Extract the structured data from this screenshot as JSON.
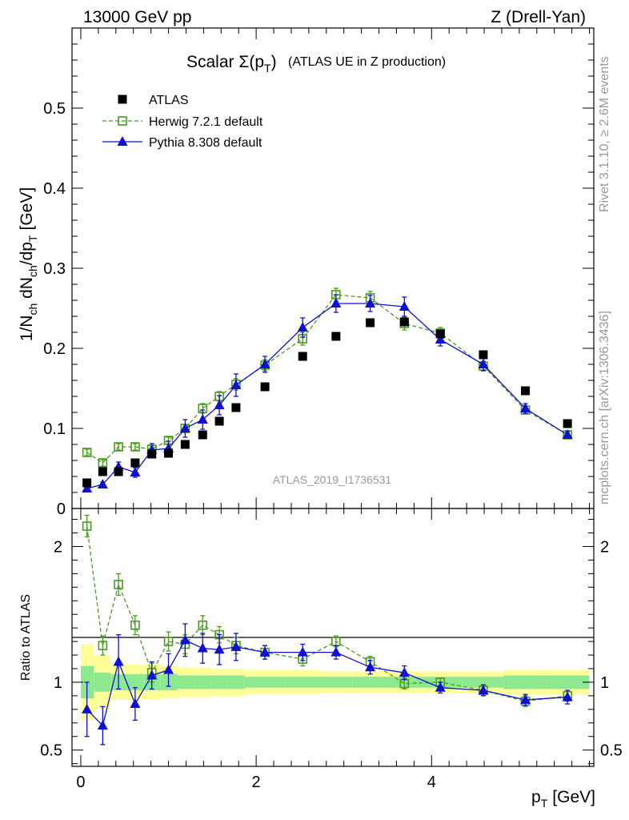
{
  "header": {
    "left": "13000 GeV pp",
    "right": "Z (Drell-Yan)"
  },
  "chart_data": {
    "type": "line",
    "title_main": "Scalar Σ(p",
    "title_sub": "T",
    "title_tail": ")",
    "title_note": "(ATLAS UE in Z production)",
    "analysis_id": "ATLAS_2019_I1736531",
    "xlabel": "p",
    "xlabel_sub": "T",
    "xlabel_unit": "[GeV]",
    "ylabel": "1/N",
    "ylabel_parts": {
      "a": "1/N",
      "a_sub": "ch",
      "b": " dN",
      "b_sub": "ch",
      "c": "/dp",
      "c_sub": "T",
      "unit": "[GeV]"
    },
    "ratio_ylabel": "Ratio to ATLAS",
    "xlim": [
      -0.1,
      5.85
    ],
    "ylim": [
      0,
      0.6
    ],
    "ratio_ylim": [
      0.38,
      2.28
    ],
    "x_ticks": [
      0,
      2,
      4
    ],
    "x_tick_labels": [
      "0",
      "2",
      "4"
    ],
    "y_ticks": [
      0,
      0.1,
      0.2,
      0.3,
      0.4,
      0.5
    ],
    "y_tick_labels": [
      "0",
      "0.1",
      "0.2",
      "0.3",
      "0.4",
      "0.5"
    ],
    "ratio_ticks": [
      0.5,
      1,
      2
    ],
    "ratio_tick_labels": [
      "0.5",
      "1",
      "2"
    ],
    "legend_placement": "top-left",
    "side_text_top": "Rivet 3.1.10, ≥ 2.6M events",
    "side_text_bottom": "mcplots.cern.ch [arXiv:1306.3436]",
    "x": [
      0.07,
      0.25,
      0.43,
      0.62,
      0.81,
      1.0,
      1.19,
      1.39,
      1.58,
      1.77,
      2.1,
      2.53,
      2.91,
      3.3,
      3.69,
      4.1,
      4.59,
      5.07,
      5.55
    ],
    "series": [
      {
        "name": "ATLAS",
        "color": "#000000",
        "values": [
          0.032,
          0.046,
          0.046,
          0.057,
          0.068,
          0.069,
          0.08,
          0.092,
          0.109,
          0.126,
          0.152,
          0.19,
          0.215,
          0.232,
          0.233,
          0.218,
          0.192,
          0.147,
          0.106
        ]
      },
      {
        "name": "Herwig 7.2.1 default",
        "color": "#4a9b1e",
        "values": [
          0.07,
          0.057,
          0.077,
          0.077,
          0.074,
          0.085,
          0.1,
          0.125,
          0.14,
          0.155,
          0.179,
          0.212,
          0.267,
          0.263,
          0.231,
          0.219,
          0.178,
          0.123,
          0.092
        ],
        "errors": [
          0.004,
          0.004,
          0.004,
          0.004,
          0.004,
          0.004,
          0.005,
          0.006,
          0.006,
          0.007,
          0.007,
          0.008,
          0.008,
          0.008,
          0.008,
          0.007,
          0.006,
          0.005,
          0.004
        ],
        "ratio": [
          2.15,
          1.27,
          1.72,
          1.42,
          1.07,
          1.3,
          1.28,
          1.42,
          1.35,
          1.27,
          1.22,
          1.17,
          1.3,
          1.15,
          0.99,
          1.0,
          0.94,
          0.86,
          0.9
        ],
        "ratio_errors": [
          0.08,
          0.07,
          0.08,
          0.07,
          0.07,
          0.07,
          0.07,
          0.07,
          0.06,
          0.06,
          0.05,
          0.05,
          0.04,
          0.04,
          0.04,
          0.03,
          0.04,
          0.04,
          0.04
        ]
      },
      {
        "name": "Pythia 8.308 default",
        "color": "#1010d0",
        "values": [
          0.025,
          0.03,
          0.052,
          0.045,
          0.073,
          0.075,
          0.1,
          0.111,
          0.129,
          0.154,
          0.18,
          0.226,
          0.256,
          0.256,
          0.252,
          0.211,
          0.18,
          0.125,
          0.092
        ],
        "errors": [
          0.003,
          0.003,
          0.006,
          0.006,
          0.008,
          0.009,
          0.011,
          0.012,
          0.012,
          0.014,
          0.01,
          0.012,
          0.011,
          0.01,
          0.012,
          0.008,
          0.008,
          0.006,
          0.004
        ],
        "ratio": [
          0.8,
          0.68,
          1.15,
          0.84,
          1.05,
          1.09,
          1.31,
          1.25,
          1.24,
          1.26,
          1.22,
          1.22,
          1.22,
          1.11,
          1.07,
          0.96,
          0.94,
          0.87,
          0.89
        ],
        "ratio_errors": [
          0.2,
          0.14,
          0.2,
          0.12,
          0.1,
          0.12,
          0.12,
          0.11,
          0.11,
          0.1,
          0.05,
          0.06,
          0.05,
          0.05,
          0.05,
          0.04,
          0.04,
          0.04,
          0.05
        ]
      }
    ],
    "ratio_band": {
      "edges": [
        0.0,
        0.15,
        0.34,
        0.53,
        0.72,
        0.91,
        1.1,
        1.29,
        1.48,
        1.67,
        1.87,
        2.32,
        2.73,
        3.1,
        3.5,
        3.89,
        4.35,
        4.82,
        5.31,
        5.8
      ],
      "stat": [
        0.12,
        0.07,
        0.06,
        0.06,
        0.06,
        0.06,
        0.05,
        0.05,
        0.05,
        0.05,
        0.04,
        0.04,
        0.04,
        0.04,
        0.04,
        0.04,
        0.04,
        0.05,
        0.05
      ],
      "total": [
        0.28,
        0.2,
        0.13,
        0.13,
        0.13,
        0.12,
        0.11,
        0.11,
        0.1,
        0.1,
        0.09,
        0.09,
        0.08,
        0.08,
        0.08,
        0.08,
        0.08,
        0.09,
        0.09
      ],
      "stat_color": "#8ee890",
      "total_color": "#ffff99"
    }
  }
}
